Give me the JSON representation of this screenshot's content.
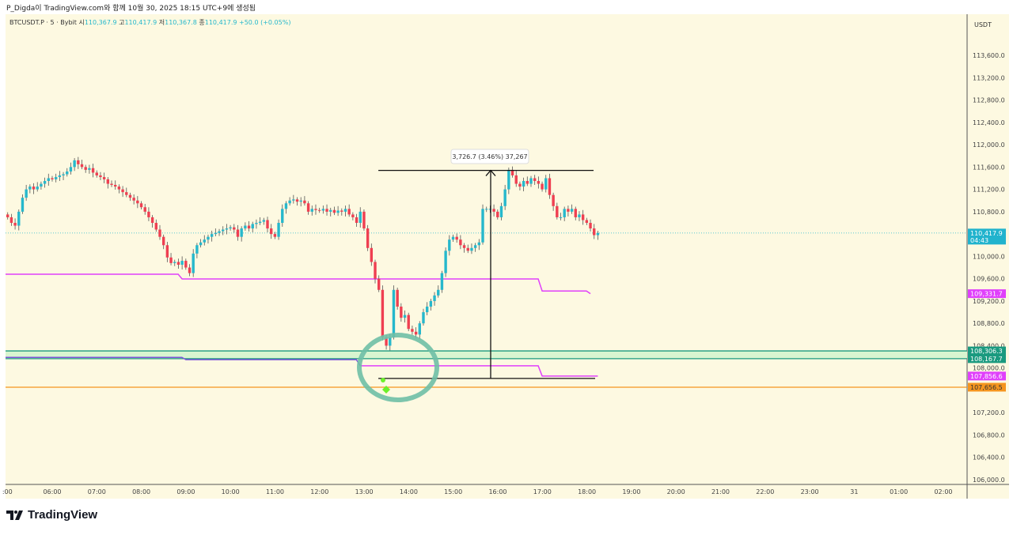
{
  "header": {
    "caption": "P_Digda이 TradingView.com와 함께 10월 30, 2025 18:15 UTC+9에 생성됨"
  },
  "legend": {
    "symbol": "BTCUSDT.P · 5 · Bybit",
    "o_label": "시",
    "o": "110,367.9",
    "h_label": "고",
    "h": "110,417.9",
    "l_label": "저",
    "l": "110,367.8",
    "c_label": "종",
    "c": "110,417.9",
    "change": "+50.0 (+0.05%)"
  },
  "logo": {
    "text": "TradingView"
  },
  "colors": {
    "up": "#26b8cc",
    "down": "#ef3f51",
    "background": "#fdf9e1",
    "magenta": "#e040fb",
    "teal": "#1a9a7f",
    "orange": "#f5951f",
    "price_tag": "#21b3cd"
  },
  "chart_data": {
    "type": "candlestick",
    "currency": "USDT",
    "interval_minutes": 5,
    "start_time": "05:00",
    "ylim": [
      105900,
      113900
    ],
    "y_ticks": [
      "113,600.0",
      "113,200.0",
      "112,800.0",
      "112,400.0",
      "112,000.0",
      "111,600.0",
      "111,200.0",
      "110,800.0",
      "110,000.0",
      "109,600.0",
      "109,200.0",
      "108,800.0",
      "108,400.0",
      "108,000.0",
      "107,200.0",
      "106,800.0",
      "106,400.0",
      "106,000.0"
    ],
    "x_ticks": [
      ":00",
      "06:00",
      "07:00",
      "08:00",
      "09:00",
      "10:00",
      "11:00",
      "12:00",
      "13:00",
      "14:00",
      "15:00",
      "16:00",
      "17:00",
      "18:00",
      "19:00",
      "20:00",
      "21:00",
      "22:00",
      "23:00",
      "31",
      "01:00",
      "02:00"
    ],
    "closes": [
      110700,
      110600,
      110550,
      110800,
      111050,
      111200,
      111250,
      111200,
      111250,
      111300,
      111350,
      111400,
      111380,
      111420,
      111450,
      111470,
      111520,
      111600,
      111720,
      111650,
      111600,
      111550,
      111580,
      111500,
      111450,
      111420,
      111380,
      111300,
      111280,
      111250,
      111200,
      111150,
      111100,
      111050,
      111000,
      110950,
      110880,
      110800,
      110700,
      110600,
      110480,
      110350,
      110200,
      109980,
      109880,
      109900,
      109850,
      109920,
      109800,
      109700,
      110050,
      110200,
      110250,
      110300,
      110350,
      110400,
      110420,
      110450,
      110480,
      110500,
      110520,
      110480,
      110350,
      110500,
      110550,
      110500,
      110580,
      110600,
      110620,
      110650,
      110500,
      110400,
      110350,
      110600,
      110850,
      110950,
      111000,
      111020,
      110980,
      111000,
      110950,
      110800,
      110850,
      110830,
      110820,
      110850,
      110800,
      110830,
      110780,
      110820,
      110800,
      110850,
      110750,
      110700,
      110600,
      110800,
      110500,
      110150,
      109900,
      109600,
      109400,
      108550,
      108400,
      108550,
      109400,
      109100,
      108900,
      108950,
      108700,
      108650,
      108600,
      108800,
      109000,
      109100,
      109200,
      109300,
      109400,
      109700,
      110100,
      110300,
      110350,
      110300,
      110200,
      110150,
      110100,
      110150,
      110200,
      110250,
      110850,
      110850,
      110850,
      110800,
      110700,
      110900,
      111200,
      111550,
      111450,
      111300,
      111250,
      111350,
      111300,
      111400,
      111350,
      111300,
      111200,
      111400,
      111100,
      110900,
      110700,
      110700,
      110850,
      110800,
      110850,
      110700,
      110750,
      110650,
      110600,
      110500,
      110380,
      110418
    ],
    "last_price": {
      "label": "110,417.9",
      "countdown": "04:43",
      "value": 110417.9
    },
    "levels": [
      {
        "label": "109,331.7",
        "value": 109331.7,
        "color": "#e040fb"
      },
      {
        "label": "108,306.3",
        "value": 108306.3,
        "color": "#1a9a7f"
      },
      {
        "label": "108,167.7",
        "value": 108167.7,
        "color": "#1a9a7f"
      },
      {
        "label": "107,856.6",
        "value": 107856.6,
        "color": "#e040fb"
      },
      {
        "label": "107,656.5",
        "value": 107656.5,
        "color": "#f5951f"
      }
    ],
    "upper_band_steps": [
      [
        0,
        109680
      ],
      [
        47,
        109595
      ],
      [
        144,
        109380
      ],
      [
        157,
        109331.7
      ]
    ],
    "lower_band_steps": [
      [
        0,
        108190
      ],
      [
        48,
        108150
      ],
      [
        95,
        108040
      ],
      [
        144,
        107856.6
      ],
      [
        159,
        107856.6
      ]
    ],
    "measure": {
      "label": "3,726.7 (3.46%) 37,267",
      "high": 111540,
      "low": 107813,
      "from_index": 102
    }
  }
}
